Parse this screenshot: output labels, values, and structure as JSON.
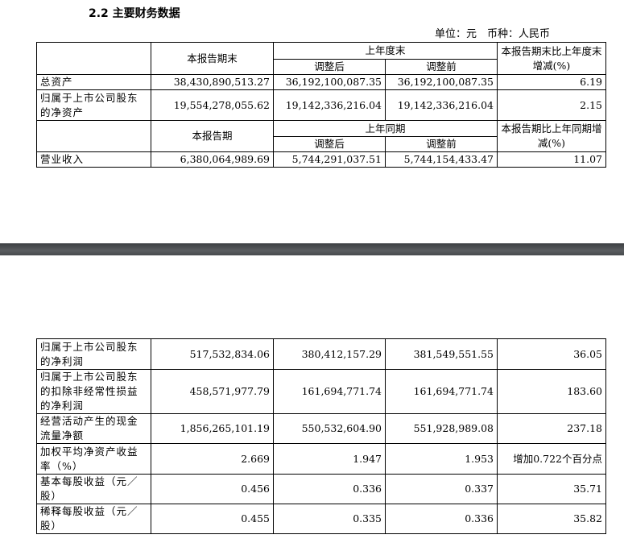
{
  "title": "2.2 主要财务数据",
  "unit": "单位：元　币种：人民币",
  "table1": {
    "h1": {
      "current_end": "本报告期末",
      "prior_end": "上年度末",
      "change": "本报告期末比上年度末增减(%)",
      "adjusted": "调整后",
      "before": "调整前"
    },
    "rows": [
      {
        "label": "总资产",
        "v1": "38,430,890,513.27",
        "v2": "36,192,100,087.35",
        "v3": "36,192,100,087.35",
        "v4": "6.19"
      },
      {
        "label": "归属于上市公司股东的净资产",
        "v1": "19,554,278,055.62",
        "v2": "19,142,336,216.04",
        "v3": "19,142,336,216.04",
        "v4": "2.15"
      }
    ],
    "h2": {
      "current": "本报告期",
      "prior": "上年同期",
      "change": "本报告期比上年同期增减(%)",
      "adjusted": "调整后",
      "before": "调整前"
    },
    "rows2": [
      {
        "label": "营业收入",
        "v1": "6,380,064,989.69",
        "v2": "5,744,291,037.51",
        "v3": "5,744,154,433.47",
        "v4": "11.07"
      }
    ]
  },
  "table2": {
    "rows": [
      {
        "label": "归属于上市公司股东的净利润",
        "v1": "517,532,834.06",
        "v2": "380,412,157.29",
        "v3": "381,549,551.55",
        "v4": "36.05"
      },
      {
        "label": "归属于上市公司股东的扣除非经常性损益的净利润",
        "v1": "458,571,977.79",
        "v2": "161,694,771.74",
        "v3": "161,694,771.74",
        "v4": "183.60"
      },
      {
        "label": "经营活动产生的现金流量净额",
        "v1": "1,856,265,101.19",
        "v2": "550,532,604.90",
        "v3": "551,928,989.08",
        "v4": "237.18"
      },
      {
        "label": "加权平均净资产收益率（%）",
        "v1": "2.669",
        "v2": "1.947",
        "v3": "1.953",
        "v4": "增加0.722个百分点"
      },
      {
        "label": "基本每股收益（元／股）",
        "v1": "0.456",
        "v2": "0.336",
        "v3": "0.337",
        "v4": "35.71"
      },
      {
        "label": "稀释每股收益（元／股）",
        "v1": "0.455",
        "v2": "0.335",
        "v3": "0.336",
        "v4": "35.82"
      }
    ]
  }
}
